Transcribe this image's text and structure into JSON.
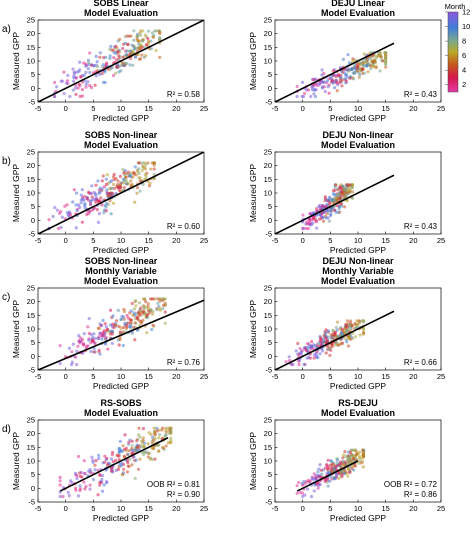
{
  "colorbar": {
    "label": "Month",
    "ticks": [
      "2",
      "4",
      "6",
      "8",
      "10",
      "12"
    ],
    "range": [
      1,
      12
    ],
    "colormap": [
      [
        0.0,
        "#e33aa8"
      ],
      [
        0.18,
        "#d6184a"
      ],
      [
        0.35,
        "#c45a1c"
      ],
      [
        0.5,
        "#b9a828"
      ],
      [
        0.64,
        "#7aa88e"
      ],
      [
        0.8,
        "#3f7fd8"
      ],
      [
        1.0,
        "#8e58e0"
      ]
    ]
  },
  "chart_data": [
    {
      "id": "a-left",
      "row_label": "a)",
      "type": "scatter",
      "title": [
        "SOBS Linear",
        "Model Evaluation"
      ],
      "xlabel": "Predicted GPP",
      "ylabel": "Measured GPP",
      "xlim": [
        -5,
        25
      ],
      "ylim": [
        -5,
        25
      ],
      "xticks": [
        "-5",
        "0",
        "5",
        "10",
        "15",
        "20",
        "25"
      ],
      "yticks": [
        "-5",
        "0",
        "5",
        "10",
        "15",
        "20",
        "25"
      ],
      "fit_line": {
        "x": [
          -5,
          25
        ],
        "y": [
          -5,
          25
        ]
      },
      "stats": [
        "R² = 0.58"
      ],
      "cloud": {
        "x_range": [
          -2,
          17
        ],
        "y_range": [
          -3,
          21
        ]
      }
    },
    {
      "id": "a-right",
      "row_label": "",
      "type": "scatter",
      "title": [
        "DEJU Linear",
        "Model Evaluation"
      ],
      "xlabel": "Predicted GPP",
      "ylabel": "Measured GPP",
      "xlim": [
        -5,
        25
      ],
      "ylim": [
        -5,
        25
      ],
      "xticks": [
        "-5",
        "0",
        "5",
        "10",
        "15",
        "20",
        "25"
      ],
      "yticks": [
        "-5",
        "0",
        "5",
        "10",
        "15",
        "20",
        "25"
      ],
      "fit_line": {
        "x": [
          -5,
          16.5
        ],
        "y": [
          -5,
          16.5
        ]
      },
      "stats": [
        "R² = 0.43"
      ],
      "cloud": {
        "x_range": [
          -1,
          15
        ],
        "y_range": [
          -3,
          13
        ]
      }
    },
    {
      "id": "b-left",
      "row_label": "b)",
      "type": "scatter",
      "title": [
        "SOBS Non-linear",
        "Model Evaluation"
      ],
      "xlabel": "Predicted GPP",
      "ylabel": "Measured GPP",
      "xlim": [
        -5,
        25
      ],
      "ylim": [
        -5,
        25
      ],
      "xticks": [
        "-5",
        "0",
        "5",
        "10",
        "15",
        "20",
        "25"
      ],
      "yticks": [
        "-5",
        "0",
        "5",
        "10",
        "15",
        "20",
        "25"
      ],
      "fit_line": {
        "x": [
          -5,
          25
        ],
        "y": [
          -5,
          25
        ]
      },
      "stats": [
        "R² = 0.60"
      ],
      "cloud": {
        "x_range": [
          -3,
          16
        ],
        "y_range": [
          -3,
          21
        ]
      }
    },
    {
      "id": "b-right",
      "row_label": "",
      "type": "scatter",
      "title": [
        "DEJU Non-linear",
        "Model Evaluation"
      ],
      "xlabel": "Predicted GPP",
      "ylabel": "Measured GPP",
      "xlim": [
        -5,
        25
      ],
      "ylim": [
        -5,
        25
      ],
      "xticks": [
        "-5",
        "0",
        "5",
        "10",
        "15",
        "20",
        "25"
      ],
      "yticks": [
        "-5",
        "0",
        "5",
        "10",
        "15",
        "20",
        "25"
      ],
      "fit_line": {
        "x": [
          -5,
          16.5
        ],
        "y": [
          -5,
          16.5
        ]
      },
      "stats": [
        "R² = 0.43"
      ],
      "cloud": {
        "x_range": [
          0,
          9
        ],
        "y_range": [
          -3,
          13
        ]
      }
    },
    {
      "id": "c-left",
      "row_label": "c)",
      "type": "scatter",
      "title": [
        "SOBS Non-linear",
        "Monthly Variable",
        "Model Evaluation"
      ],
      "xlabel": "Predicted GPP",
      "ylabel": "Measured GPP",
      "xlim": [
        -5,
        25
      ],
      "ylim": [
        -5,
        25
      ],
      "xticks": [
        "-5",
        "0",
        "5",
        "10",
        "15",
        "20",
        "25"
      ],
      "yticks": [
        "-5",
        "0",
        "5",
        "10",
        "15",
        "20",
        "25"
      ],
      "fit_line": {
        "x": [
          -5,
          25
        ],
        "y": [
          -5,
          20.5
        ]
      },
      "stats": [
        "R² = 0.76"
      ],
      "cloud": {
        "x_range": [
          -1,
          18
        ],
        "y_range": [
          -3,
          21
        ]
      }
    },
    {
      "id": "c-right",
      "row_label": "",
      "type": "scatter",
      "title": [
        "DEJU Non-linear",
        "Monthly Variable",
        "Model Evaluation"
      ],
      "xlabel": "Predicted GPP",
      "ylabel": "Measured GPP",
      "xlim": [
        -5,
        25
      ],
      "ylim": [
        -5,
        25
      ],
      "xticks": [
        "-5",
        "0",
        "5",
        "10",
        "15",
        "20",
        "25"
      ],
      "yticks": [
        "-5",
        "0",
        "5",
        "10",
        "15",
        "20",
        "25"
      ],
      "fit_line": {
        "x": [
          -5,
          16.5
        ],
        "y": [
          -5,
          16.5
        ]
      },
      "stats": [
        "R² = 0.66"
      ],
      "cloud": {
        "x_range": [
          -3,
          11
        ],
        "y_range": [
          -3,
          13
        ]
      }
    },
    {
      "id": "d-left",
      "row_label": "d)",
      "type": "scatter",
      "title": [
        "RS-SOBS",
        "Model Evaluation"
      ],
      "xlabel": "Predicted GPP",
      "ylabel": "Measured GPP",
      "xlim": [
        -5,
        25
      ],
      "ylim": [
        -5,
        25
      ],
      "xticks": [
        "-5",
        "0",
        "5",
        "10",
        "15",
        "20",
        "25"
      ],
      "yticks": [
        "-5",
        "0",
        "5",
        "10",
        "15",
        "20",
        "25"
      ],
      "fit_line": {
        "x": [
          -1,
          18.5
        ],
        "y": [
          -1,
          18.5
        ]
      },
      "stats": [
        "OOB R² = 0.81",
        "R² = 0.90"
      ],
      "cloud": {
        "x_range": [
          -1,
          19
        ],
        "y_range": [
          -3,
          22
        ]
      }
    },
    {
      "id": "d-right",
      "row_label": "",
      "type": "scatter",
      "title": [
        "RS-DEJU",
        "Model Evaluation"
      ],
      "xlabel": "Predicted GPP",
      "ylabel": "Measured GPP",
      "xlim": [
        -5,
        25
      ],
      "ylim": [
        -5,
        25
      ],
      "xticks": [
        "-5",
        "0",
        "5",
        "10",
        "15",
        "20",
        "25"
      ],
      "yticks": [
        "-5",
        "0",
        "5",
        "10",
        "15",
        "20",
        "25"
      ],
      "fit_line": {
        "x": [
          -1,
          10
        ],
        "y": [
          -1,
          10
        ]
      },
      "stats": [
        "OOB R² = 0.72",
        "R² = 0.86"
      ],
      "cloud": {
        "x_range": [
          -1,
          11
        ],
        "y_range": [
          -3,
          14
        ]
      }
    }
  ]
}
